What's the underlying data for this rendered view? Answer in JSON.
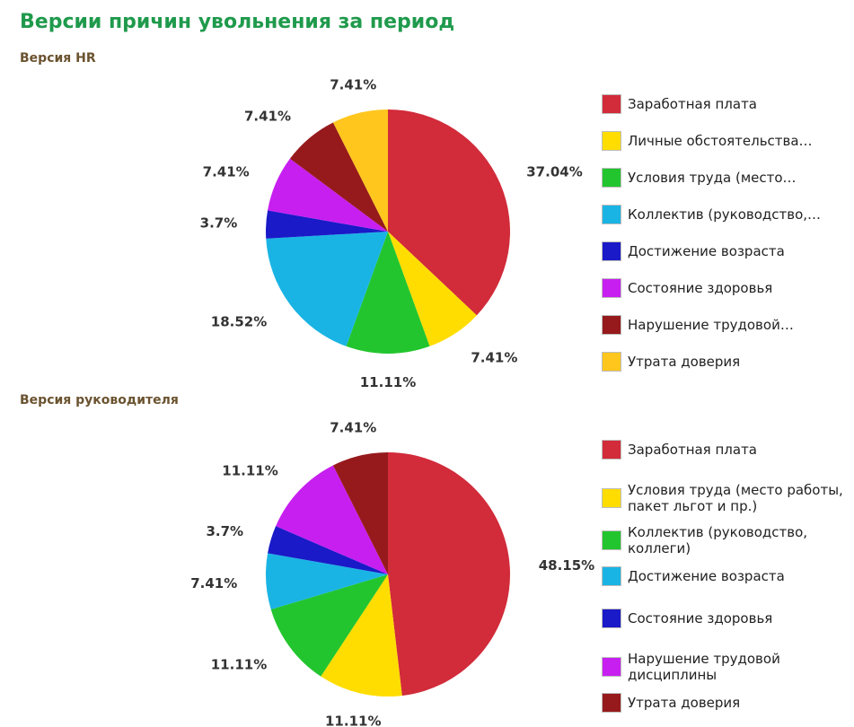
{
  "title": "Версии причин увольнения за период",
  "chart_data": [
    {
      "type": "pie",
      "title": "Версия HR",
      "slices": [
        {
          "label": "Заработная плата",
          "value": 37.04,
          "color": "#d22b3a"
        },
        {
          "label": "Личные обстоятельства…",
          "value": 7.41,
          "color": "#ffdd00"
        },
        {
          "label": "Условия труда (место…",
          "value": 11.11,
          "color": "#22c52e"
        },
        {
          "label": "Коллектив (руководство,…",
          "value": 18.52,
          "color": "#1ab4e4"
        },
        {
          "label": "Достижение возраста",
          "value": 3.7,
          "color": "#1a1ac8"
        },
        {
          "label": "Состояние здоровья",
          "value": 7.41,
          "color": "#c71ff0"
        },
        {
          "label": "Нарушение трудовой…",
          "value": 7.41,
          "color": "#961a1c"
        },
        {
          "label": "Утрата доверия",
          "value": 7.41,
          "color": "#ffc61e"
        }
      ],
      "value_labels": [
        "37.04%",
        "7.41%",
        "11.11%",
        "18.52%",
        "3.7%",
        "7.41%",
        "7.41%",
        "7.41%"
      ],
      "legend_position": "right"
    },
    {
      "type": "pie",
      "title": "Версия руководителя",
      "slices": [
        {
          "label": "Заработная плата",
          "value": 48.15,
          "color": "#d22b3a"
        },
        {
          "label": "Условия труда (место работы, пакет льгот и пр.)",
          "value": 11.11,
          "color": "#ffdd00"
        },
        {
          "label": "Коллектив (руководство, коллеги)",
          "value": 11.11,
          "color": "#22c52e"
        },
        {
          "label": "Достижение возраста",
          "value": 7.41,
          "color": "#1ab4e4"
        },
        {
          "label": "Состояние здоровья",
          "value": 3.7,
          "color": "#1a1ac8"
        },
        {
          "label": "Нарушение трудовой дисциплины",
          "value": 11.11,
          "color": "#c71ff0"
        },
        {
          "label": "Утрата доверия",
          "value": 7.41,
          "color": "#961a1c"
        }
      ],
      "value_labels": [
        "48.15%",
        "11.11%",
        "11.11%",
        "7.41%",
        "3.7%",
        "11.11%",
        "7.41%"
      ],
      "legend_position": "right"
    }
  ]
}
